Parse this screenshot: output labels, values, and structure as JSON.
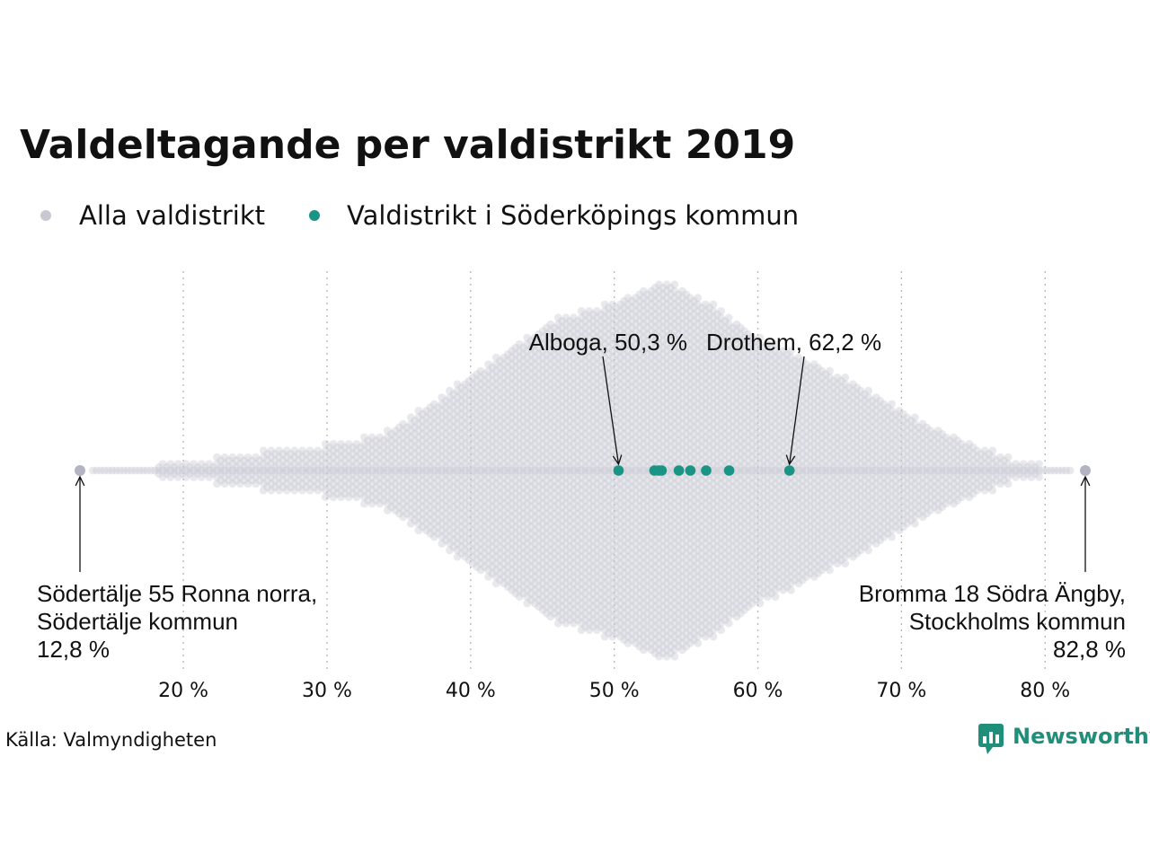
{
  "chart_data": {
    "type": "scatter",
    "subtype": "beeswarm",
    "title": "Valdeltagande per valdistrikt 2019",
    "xlabel": "",
    "ylabel": "",
    "xlim": [
      12,
      85
    ],
    "x_ticks": [
      {
        "value": 20,
        "label": "20 %"
      },
      {
        "value": 30,
        "label": "30 %"
      },
      {
        "value": 40,
        "label": "40 %"
      },
      {
        "value": 50,
        "label": "50 %"
      },
      {
        "value": 60,
        "label": "60 %"
      },
      {
        "value": 70,
        "label": "70 %"
      },
      {
        "value": 80,
        "label": "80 %"
      }
    ],
    "grid": "vertical-dotted",
    "legend_position": "top-left",
    "series": [
      {
        "name": "Alla valdistrikt",
        "color": "#c8c8d3",
        "distribution_profile": [
          [
            12.8,
            0
          ],
          [
            16,
            0.4
          ],
          [
            19,
            0.9
          ],
          [
            22,
            1.5
          ],
          [
            25,
            2.2
          ],
          [
            28,
            2.8
          ],
          [
            31,
            3.2
          ],
          [
            34,
            4.5
          ],
          [
            37,
            7.5
          ],
          [
            40,
            11
          ],
          [
            43,
            14.5
          ],
          [
            46,
            17.5
          ],
          [
            50,
            19.5
          ],
          [
            53.6,
            22
          ],
          [
            57,
            19
          ],
          [
            60,
            15.5
          ],
          [
            64,
            12.5
          ],
          [
            67,
            10
          ],
          [
            70,
            7
          ],
          [
            73,
            4.5
          ],
          [
            76,
            2.5
          ],
          [
            78,
            1.3
          ],
          [
            80,
            0.7
          ],
          [
            82.8,
            0
          ]
        ],
        "highlights": [
          {
            "x": 12.8,
            "label_lines": [
              "Södertälje 55 Ronna norra,",
              "Södertälje kommun",
              "12,8 %"
            ]
          },
          {
            "x": 82.8,
            "label_lines": [
              "Bromma 18 Södra Ängby,",
              "Stockholms kommun",
              "82,8 %"
            ]
          }
        ]
      },
      {
        "name": "Valdistrikt i Söderköpings kommun",
        "color": "#1a9484",
        "values": [
          50.3,
          52.8,
          53.1,
          53.3,
          54.5,
          55.3,
          56.4,
          58.0,
          62.2
        ],
        "highlights": [
          {
            "x": 50.3,
            "label": "Alboga, 50,3 %"
          },
          {
            "x": 62.2,
            "label": "Drothem, 62,2 %"
          }
        ]
      }
    ]
  },
  "source": "Källa: Valmyndigheten",
  "brand": "Newsworthy"
}
